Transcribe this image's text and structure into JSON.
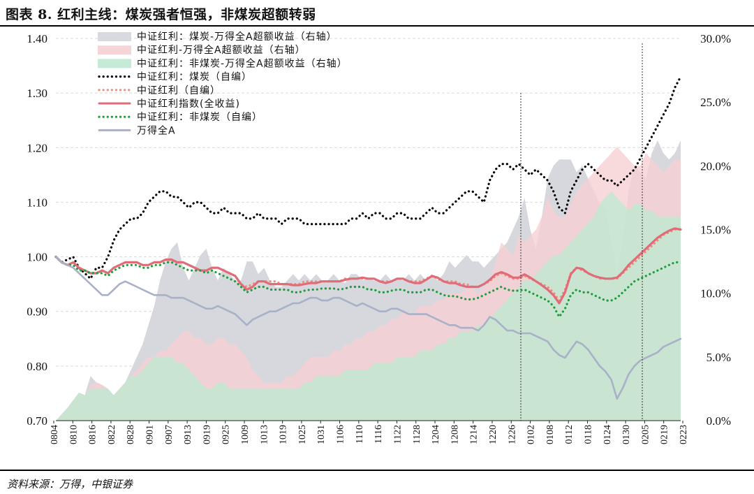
{
  "title": "图表 8. 红利主线：煤炭强者恒强，非煤炭超额转弱",
  "source": "资料来源：万得，中银证券",
  "chart_data": {
    "type": "line",
    "title": "图表 8. 红利主线：煤炭强者恒强，非煤炭超额转弱",
    "ylim": [
      0.7,
      1.4
    ],
    "y2lim": [
      0.0,
      30.0
    ],
    "y_ticks": [
      "0.70",
      "0.80",
      "0.90",
      "1.00",
      "1.10",
      "1.20",
      "1.30",
      "1.40"
    ],
    "y2_ticks": [
      "0.0%",
      "5.0%",
      "10.0%",
      "15.0%",
      "20.0%",
      "25.0%",
      "30.0%"
    ],
    "x_ticks": [
      "0804",
      "0810",
      "0816",
      "0822",
      "0828",
      "0901",
      "0907",
      "0913",
      "0919",
      "0925",
      "1009",
      "1013",
      "1019",
      "1025",
      "1031",
      "1106",
      "1110",
      "1116",
      "1122",
      "1128",
      "1204",
      "1208",
      "1214",
      "1220",
      "1226",
      "0102",
      "0108",
      "0112",
      "0118",
      "0124",
      "0130",
      "0205",
      "0219",
      "0223"
    ],
    "vlines_at": [
      "1229",
      "0205"
    ],
    "legend_position": "top-left",
    "grid": "horizontal-dashed",
    "colors": {
      "coal_excess": "#d4d6dc",
      "index_excess": "#f6cfd3",
      "noncoal_excess": "#bfe8d0",
      "coal_line": "#000000",
      "div_self": "#f08c7a",
      "div_index": "#e06c78",
      "noncoal_line": "#1f9e3c",
      "wind_a": "#a9b1c9"
    },
    "series": [
      {
        "name": "中证红利：煤炭-万得全A超额收益（右轴）",
        "kind": "area",
        "axis": "right",
        "values": [
          0.0,
          0.5,
          1.0,
          1.6,
          2.2,
          2.0,
          3.5,
          3.0,
          2.8,
          2.5,
          2.0,
          2.5,
          3.0,
          4.0,
          5.0,
          6.0,
          7.5,
          9.0,
          11.0,
          12.5,
          13.5,
          14.0,
          12.0,
          11.0,
          12.0,
          13.0,
          13.5,
          12.0,
          11.0,
          12.0,
          11.5,
          11.0,
          11.0,
          12.5,
          12.5,
          11.5,
          12.0,
          11.0,
          10.5,
          10.5,
          11.0,
          11.5,
          11.0,
          11.5,
          11.0,
          11.5,
          11.0,
          11.0,
          11.5,
          11.0,
          10.8,
          11.5,
          11.5,
          11.0,
          11.2,
          11.0,
          11.0,
          11.5,
          11.0,
          11.2,
          11.0,
          11.5,
          11.0,
          11.5,
          11.0,
          11.5,
          11.0,
          11.5,
          12.5,
          12.0,
          12.5,
          13.0,
          12.5,
          12.5,
          12.0,
          12.5,
          13.0,
          13.5,
          14.0,
          15.0,
          16.0,
          17.5,
          15.0,
          13.5,
          16.0,
          19.0,
          20.0,
          20.5,
          20.5,
          20.5,
          19.5,
          20.0,
          19.0,
          18.0,
          17.0,
          16.5,
          14.0,
          11.5,
          14.0,
          18.0,
          20.0,
          19.5,
          19.0,
          21.0,
          22.0,
          21.0,
          20.5,
          21.0,
          22.0
        ]
      },
      {
        "name": "中证红利-万得全A超额收益（右轴）",
        "kind": "area",
        "axis": "right",
        "values": [
          0.0,
          0.5,
          1.0,
          1.6,
          2.2,
          2.0,
          2.8,
          3.0,
          2.8,
          2.5,
          2.0,
          2.5,
          3.0,
          3.5,
          4.0,
          4.5,
          5.0,
          5.0,
          5.5,
          5.5,
          6.0,
          6.5,
          7.0,
          7.0,
          6.5,
          6.5,
          6.0,
          6.0,
          6.5,
          6.5,
          6.0,
          6.0,
          5.5,
          5.0,
          4.0,
          3.5,
          3.0,
          3.0,
          3.0,
          3.0,
          3.5,
          3.5,
          4.0,
          4.5,
          5.0,
          5.0,
          5.0,
          5.0,
          5.5,
          5.5,
          6.0,
          6.0,
          6.5,
          6.5,
          7.0,
          7.0,
          7.5,
          7.5,
          8.0,
          8.0,
          8.5,
          8.5,
          8.5,
          9.0,
          9.0,
          9.0,
          9.5,
          9.5,
          10.0,
          10.0,
          10.0,
          10.5,
          10.5,
          10.0,
          10.5,
          11.0,
          12.5,
          14.0,
          13.5,
          13.0,
          14.5,
          14.0,
          14.5,
          15.0,
          16.0,
          17.5,
          16.5,
          16.0,
          16.0,
          17.0,
          18.0,
          18.5,
          19.0,
          19.5,
          20.0,
          20.5,
          21.0,
          21.5,
          21.0,
          20.5,
          20.0,
          20.0,
          21.0,
          20.5,
          20.0,
          19.5,
          20.0,
          20.5,
          20.5
        ]
      },
      {
        "name": "中证红利：非煤炭-万得全A超额收益（右轴）",
        "kind": "area",
        "axis": "right",
        "values": [
          0.0,
          0.5,
          1.0,
          1.6,
          2.2,
          2.0,
          2.5,
          2.5,
          2.5,
          2.5,
          2.0,
          2.5,
          3.0,
          3.5,
          3.5,
          4.0,
          4.5,
          5.0,
          5.0,
          5.0,
          5.0,
          4.5,
          4.5,
          4.0,
          3.5,
          3.0,
          2.5,
          2.5,
          3.0,
          3.0,
          2.5,
          2.5,
          2.5,
          2.5,
          2.5,
          2.5,
          2.5,
          2.5,
          2.5,
          2.5,
          2.5,
          2.5,
          2.5,
          3.0,
          3.0,
          3.5,
          3.5,
          3.5,
          3.5,
          3.5,
          4.0,
          4.0,
          4.0,
          4.0,
          4.0,
          4.5,
          4.5,
          4.5,
          4.5,
          5.0,
          5.0,
          5.0,
          5.0,
          5.5,
          5.5,
          5.5,
          6.0,
          6.0,
          6.5,
          6.5,
          7.0,
          7.0,
          7.0,
          7.5,
          7.5,
          8.0,
          8.5,
          9.0,
          9.5,
          10.0,
          10.5,
          11.0,
          11.0,
          11.5,
          12.0,
          12.5,
          13.0,
          13.0,
          13.5,
          14.0,
          14.5,
          15.0,
          15.5,
          16.0,
          17.0,
          17.5,
          18.0,
          17.5,
          17.0,
          16.5,
          17.0,
          17.0,
          16.5,
          16.5,
          16.0,
          16.0,
          16.0,
          16.0,
          16.0
        ]
      },
      {
        "name": "中证红利：煤炭（自编）",
        "kind": "line",
        "axis": "left",
        "style": "dotted",
        "color_key": "coal_line",
        "values": [
          1.0,
          0.99,
          0.995,
          1.0,
          0.98,
          0.97,
          0.96,
          0.98,
          0.98,
          1.0,
          1.03,
          1.05,
          1.06,
          1.07,
          1.07,
          1.08,
          1.1,
          1.11,
          1.12,
          1.12,
          1.11,
          1.11,
          1.1,
          1.09,
          1.1,
          1.1,
          1.09,
          1.08,
          1.08,
          1.09,
          1.08,
          1.08,
          1.08,
          1.07,
          1.07,
          1.08,
          1.07,
          1.07,
          1.07,
          1.06,
          1.07,
          1.07,
          1.07,
          1.06,
          1.06,
          1.06,
          1.06,
          1.06,
          1.06,
          1.06,
          1.06,
          1.07,
          1.07,
          1.08,
          1.07,
          1.08,
          1.08,
          1.07,
          1.07,
          1.08,
          1.08,
          1.07,
          1.07,
          1.07,
          1.08,
          1.09,
          1.08,
          1.08,
          1.09,
          1.1,
          1.11,
          1.12,
          1.12,
          1.11,
          1.1,
          1.14,
          1.16,
          1.17,
          1.17,
          1.16,
          1.17,
          1.16,
          1.15,
          1.16,
          1.15,
          1.14,
          1.12,
          1.09,
          1.08,
          1.12,
          1.14,
          1.16,
          1.17,
          1.16,
          1.15,
          1.14,
          1.14,
          1.13,
          1.14,
          1.15,
          1.16,
          1.18,
          1.2,
          1.22,
          1.24,
          1.26,
          1.28,
          1.31,
          1.33
        ]
      },
      {
        "name": "中证红利（自编）",
        "kind": "line",
        "axis": "left",
        "style": "dotted",
        "color_key": "div_self",
        "values": [
          1.0,
          0.99,
          0.985,
          0.99,
          0.98,
          0.975,
          0.97,
          0.97,
          0.975,
          0.97,
          0.98,
          0.985,
          0.99,
          0.99,
          0.99,
          0.985,
          0.985,
          0.99,
          0.99,
          0.995,
          0.995,
          0.99,
          0.99,
          0.985,
          0.98,
          0.975,
          0.975,
          0.98,
          0.98,
          0.975,
          0.97,
          0.965,
          0.95,
          0.945,
          0.95,
          0.955,
          0.955,
          0.955,
          0.955,
          0.95,
          0.95,
          0.95,
          0.95,
          0.955,
          0.955,
          0.955,
          0.955,
          0.955,
          0.955,
          0.955,
          0.96,
          0.96,
          0.96,
          0.96,
          0.96,
          0.96,
          0.955,
          0.955,
          0.955,
          0.96,
          0.96,
          0.955,
          0.955,
          0.955,
          0.96,
          0.965,
          0.96,
          0.955,
          0.955,
          0.955,
          0.95,
          0.95,
          0.945,
          0.945,
          0.95,
          0.955,
          0.965,
          0.97,
          0.965,
          0.96,
          0.96,
          0.965,
          0.96,
          0.955,
          0.95,
          0.945,
          0.935,
          0.92,
          0.94,
          0.97,
          0.98,
          0.975,
          0.97,
          0.965,
          0.96,
          0.96,
          0.96,
          0.96,
          0.97,
          0.98,
          0.99,
          1.0,
          1.01,
          1.02,
          1.03,
          1.04,
          1.045,
          1.05,
          1.05
        ]
      },
      {
        "name": "中证红利指数(全收益)",
        "kind": "line",
        "axis": "left",
        "style": "solid",
        "color_key": "div_index",
        "values": [
          1.0,
          0.99,
          0.985,
          0.99,
          0.98,
          0.975,
          0.97,
          0.97,
          0.975,
          0.97,
          0.98,
          0.985,
          0.99,
          0.99,
          0.99,
          0.985,
          0.985,
          0.99,
          0.99,
          0.995,
          0.995,
          0.99,
          0.99,
          0.985,
          0.98,
          0.975,
          0.975,
          0.98,
          0.98,
          0.975,
          0.97,
          0.965,
          0.95,
          0.94,
          0.945,
          0.955,
          0.955,
          0.95,
          0.95,
          0.95,
          0.95,
          0.948,
          0.948,
          0.95,
          0.952,
          0.952,
          0.955,
          0.955,
          0.955,
          0.955,
          0.958,
          0.96,
          0.96,
          0.962,
          0.96,
          0.96,
          0.955,
          0.952,
          0.955,
          0.96,
          0.96,
          0.955,
          0.952,
          0.952,
          0.958,
          0.965,
          0.962,
          0.955,
          0.952,
          0.952,
          0.948,
          0.945,
          0.945,
          0.945,
          0.95,
          0.958,
          0.968,
          0.972,
          0.968,
          0.962,
          0.962,
          0.968,
          0.962,
          0.955,
          0.948,
          0.94,
          0.93,
          0.915,
          0.935,
          0.968,
          0.98,
          0.978,
          0.97,
          0.965,
          0.962,
          0.96,
          0.96,
          0.962,
          0.972,
          0.985,
          0.995,
          1.005,
          1.015,
          1.025,
          1.035,
          1.042,
          1.048,
          1.052,
          1.05
        ]
      },
      {
        "name": "中证红利：非煤炭（自编）",
        "kind": "line",
        "axis": "left",
        "style": "dotted",
        "color_key": "noncoal_line",
        "values": [
          1.0,
          0.99,
          0.985,
          0.985,
          0.975,
          0.975,
          0.97,
          0.97,
          0.97,
          0.965,
          0.975,
          0.98,
          0.985,
          0.985,
          0.985,
          0.98,
          0.98,
          0.985,
          0.985,
          0.99,
          0.99,
          0.985,
          0.98,
          0.975,
          0.975,
          0.975,
          0.97,
          0.975,
          0.97,
          0.965,
          0.96,
          0.955,
          0.945,
          0.935,
          0.94,
          0.945,
          0.945,
          0.94,
          0.94,
          0.94,
          0.94,
          0.935,
          0.935,
          0.938,
          0.94,
          0.94,
          0.942,
          0.942,
          0.942,
          0.94,
          0.942,
          0.945,
          0.945,
          0.945,
          0.94,
          0.94,
          0.935,
          0.935,
          0.938,
          0.94,
          0.94,
          0.935,
          0.935,
          0.935,
          0.94,
          0.94,
          0.935,
          0.93,
          0.928,
          0.928,
          0.925,
          0.922,
          0.922,
          0.925,
          0.93,
          0.935,
          0.94,
          0.945,
          0.94,
          0.938,
          0.938,
          0.94,
          0.935,
          0.93,
          0.925,
          0.92,
          0.91,
          0.89,
          0.905,
          0.93,
          0.94,
          0.935,
          0.935,
          0.93,
          0.925,
          0.92,
          0.92,
          0.925,
          0.935,
          0.945,
          0.955,
          0.96,
          0.965,
          0.97,
          0.975,
          0.98,
          0.985,
          0.99,
          0.99
        ]
      },
      {
        "name": "万得全A",
        "kind": "line",
        "axis": "left",
        "style": "solid",
        "color_key": "wind_a",
        "values": [
          1.0,
          0.99,
          0.985,
          0.98,
          0.97,
          0.96,
          0.95,
          0.94,
          0.93,
          0.93,
          0.94,
          0.95,
          0.955,
          0.95,
          0.945,
          0.94,
          0.935,
          0.93,
          0.93,
          0.93,
          0.925,
          0.925,
          0.925,
          0.92,
          0.915,
          0.91,
          0.905,
          0.905,
          0.91,
          0.905,
          0.9,
          0.895,
          0.885,
          0.875,
          0.885,
          0.89,
          0.895,
          0.9,
          0.9,
          0.905,
          0.91,
          0.915,
          0.915,
          0.92,
          0.925,
          0.925,
          0.92,
          0.92,
          0.925,
          0.925,
          0.92,
          0.915,
          0.91,
          0.915,
          0.91,
          0.905,
          0.9,
          0.9,
          0.905,
          0.905,
          0.9,
          0.895,
          0.895,
          0.895,
          0.895,
          0.89,
          0.885,
          0.88,
          0.875,
          0.875,
          0.87,
          0.87,
          0.87,
          0.865,
          0.875,
          0.89,
          0.885,
          0.875,
          0.865,
          0.865,
          0.86,
          0.86,
          0.86,
          0.855,
          0.85,
          0.845,
          0.83,
          0.82,
          0.815,
          0.83,
          0.845,
          0.84,
          0.83,
          0.815,
          0.8,
          0.79,
          0.775,
          0.74,
          0.76,
          0.785,
          0.8,
          0.81,
          0.815,
          0.82,
          0.825,
          0.835,
          0.84,
          0.845,
          0.85
        ]
      }
    ]
  }
}
